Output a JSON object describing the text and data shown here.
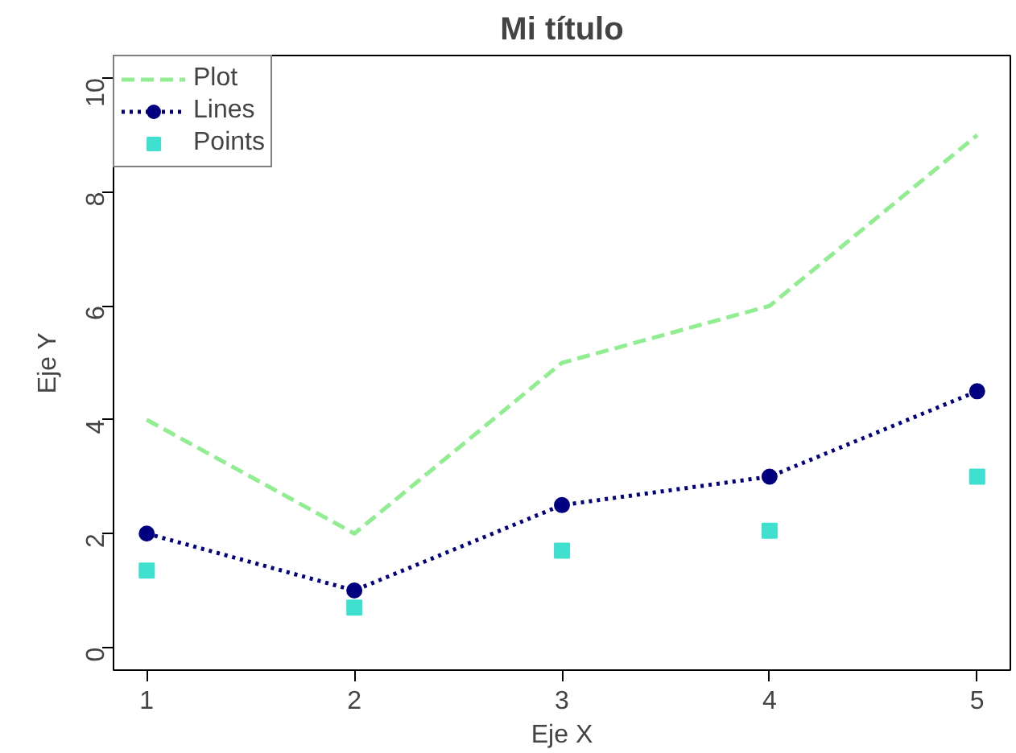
{
  "chart_data": {
    "type": "line",
    "title": "Mi título",
    "xlabel": "Eje X",
    "ylabel": "Eje Y",
    "x": [
      1,
      2,
      3,
      4,
      5
    ],
    "xlim": [
      0.84,
      5.16
    ],
    "xticks": [
      1,
      2,
      3,
      4,
      5
    ],
    "ylim": [
      -0.4,
      10.4
    ],
    "yticks": [
      0,
      2,
      4,
      6,
      8,
      10
    ],
    "grid": false,
    "legend": "top left",
    "series": [
      {
        "name": "Plot",
        "color": "#90ee90",
        "marker": "none",
        "line_style": "dashed",
        "values": [
          4,
          2,
          5,
          6,
          9
        ]
      },
      {
        "name": "Lines",
        "color": "#000080",
        "marker": "circle",
        "line_style": "dotted",
        "values": [
          2,
          1,
          2.5,
          3,
          4.5
        ]
      },
      {
        "name": "Points",
        "type": "scatter",
        "color": "#40e0d0",
        "marker": "square",
        "values": [
          1.35,
          0.7,
          1.7,
          2.05,
          3.0
        ]
      }
    ]
  }
}
